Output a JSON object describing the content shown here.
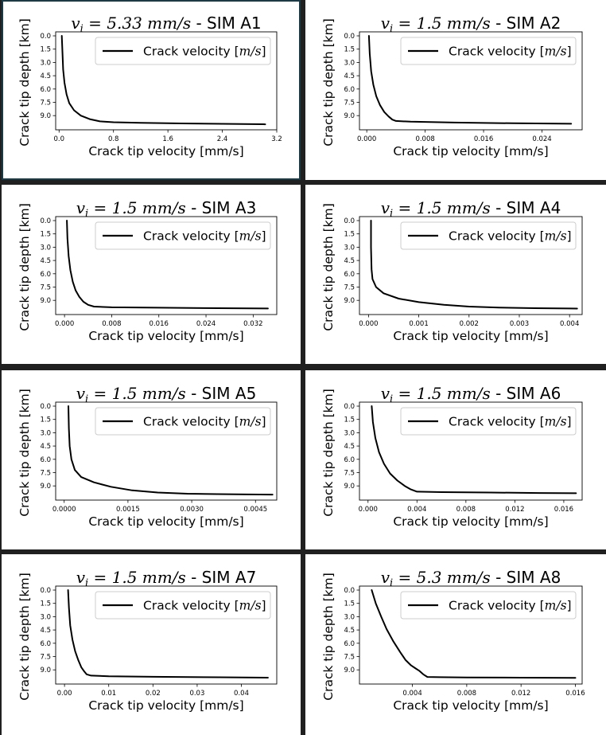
{
  "colors": {
    "background": "#202020",
    "panel": "#ffffff",
    "line": "#000000",
    "frame_A1": "#1c3a46"
  },
  "common": {
    "ylabel": "Crack tip depth [km]",
    "xlabel": "Crack tip velocity [mm/s]",
    "legend": "Crack velocity [m/s]"
  },
  "chart_data": [
    {
      "type": "line",
      "panel": "A1",
      "title": "v_i = 5.33 mm/s - SIM A1",
      "title_vi": "5.33",
      "title_sim": "SIM A1",
      "xlabel": "Crack tip velocity [mm/s]",
      "ylabel": "Crack tip depth [km]",
      "legend": "Crack velocity [m/s]",
      "legend_position": "top-right",
      "xlim": [
        -0.05,
        3.2
      ],
      "ylim": [
        10.6,
        -0.45
      ],
      "xticks": [
        0.0,
        0.8,
        1.6,
        2.4,
        3.2
      ],
      "xtick_labels": [
        "0.0",
        "0.8",
        "1.6",
        "2.4",
        "3.2"
      ],
      "yticks": [
        0.0,
        1.5,
        3.0,
        4.5,
        6.0,
        7.5,
        9.0
      ],
      "ytick_labels": [
        "0.0",
        "1.5",
        "3.0",
        "4.5",
        "6.0",
        "7.5",
        "9.0"
      ],
      "series": [
        {
          "x": [
            0.04,
            0.05,
            0.06,
            0.08,
            0.11,
            0.15,
            0.22,
            0.32,
            0.45,
            0.6,
            0.8,
            1.2,
            1.8,
            2.4,
            3.0,
            3.03
          ],
          "y": [
            0.0,
            2.0,
            3.8,
            5.3,
            6.6,
            7.6,
            8.4,
            9.0,
            9.4,
            9.65,
            9.75,
            9.82,
            9.88,
            9.93,
            9.97,
            9.98
          ]
        }
      ]
    },
    {
      "type": "line",
      "panel": "A2",
      "title": "v_i = 1.5 mm/s - SIM A2",
      "title_vi": "1.5",
      "title_sim": "SIM A2",
      "xlabel": "Crack tip velocity [mm/s]",
      "ylabel": "Crack tip depth [km]",
      "legend": "Crack velocity [m/s]",
      "legend_position": "top-right",
      "xlim": [
        -0.001,
        0.0295
      ],
      "ylim": [
        10.6,
        -0.45
      ],
      "xticks": [
        0.0,
        0.008,
        0.016,
        0.024
      ],
      "xtick_labels": [
        "0.000",
        "0.008",
        "0.016",
        "0.024"
      ],
      "yticks": [
        0.0,
        1.5,
        3.0,
        4.5,
        6.0,
        7.5,
        9.0
      ],
      "ytick_labels": [
        "0.0",
        "1.5",
        "3.0",
        "4.5",
        "6.0",
        "7.5",
        "9.0"
      ],
      "series": [
        {
          "x": [
            0.0003,
            0.0004,
            0.0006,
            0.0009,
            0.0013,
            0.0018,
            0.0024,
            0.003,
            0.0035,
            0.004,
            0.006,
            0.012,
            0.02,
            0.028
          ],
          "y": [
            0.0,
            2.0,
            4.0,
            5.5,
            6.8,
            7.8,
            8.6,
            9.1,
            9.45,
            9.6,
            9.68,
            9.78,
            9.86,
            9.92
          ]
        }
      ]
    },
    {
      "type": "line",
      "panel": "A3",
      "title": "v_i = 1.5 mm/s - SIM A3",
      "title_vi": "1.5",
      "title_sim": "SIM A3",
      "xlabel": "Crack tip velocity [mm/s]",
      "ylabel": "Crack tip depth [km]",
      "legend": "Crack velocity [m/s]",
      "legend_position": "top-right",
      "xlim": [
        -0.0015,
        0.036
      ],
      "ylim": [
        10.6,
        -0.45
      ],
      "xticks": [
        0.0,
        0.008,
        0.016,
        0.024,
        0.032
      ],
      "xtick_labels": [
        "0.000",
        "0.008",
        "0.016",
        "0.024",
        "0.032"
      ],
      "yticks": [
        0.0,
        1.5,
        3.0,
        4.5,
        6.0,
        7.5,
        9.0
      ],
      "ytick_labels": [
        "0.0",
        "1.5",
        "3.0",
        "4.5",
        "6.0",
        "7.5",
        "9.0"
      ],
      "series": [
        {
          "x": [
            0.0004,
            0.0005,
            0.0007,
            0.001,
            0.0014,
            0.0019,
            0.0025,
            0.0032,
            0.004,
            0.005,
            0.008,
            0.016,
            0.026,
            0.0345
          ],
          "y": [
            0.0,
            2.0,
            4.0,
            5.6,
            6.9,
            7.9,
            8.6,
            9.15,
            9.5,
            9.7,
            9.78,
            9.83,
            9.88,
            9.92
          ]
        }
      ]
    },
    {
      "type": "line",
      "panel": "A4",
      "title": "v_i = 1.5 mm/s - SIM A4",
      "title_vi": "1.5",
      "title_sim": "SIM A4",
      "xlabel": "Crack tip velocity [mm/s]",
      "ylabel": "Crack tip depth [km]",
      "legend": "Crack velocity [m/s]",
      "legend_position": "top-right",
      "xlim": [
        -0.00018,
        0.00425
      ],
      "ylim": [
        10.6,
        -0.45
      ],
      "xticks": [
        0.0,
        0.001,
        0.002,
        0.003,
        0.004
      ],
      "xtick_labels": [
        "0.000",
        "0.001",
        "0.002",
        "0.003",
        "0.004"
      ],
      "yticks": [
        0.0,
        1.5,
        3.0,
        4.5,
        6.0,
        7.5,
        9.0
      ],
      "ytick_labels": [
        "0.0",
        "1.5",
        "3.0",
        "4.5",
        "6.0",
        "7.5",
        "9.0"
      ],
      "series": [
        {
          "x": [
            5e-05,
            5e-05,
            6e-05,
            8e-05,
            0.00015,
            0.0003,
            0.0006,
            0.001,
            0.0015,
            0.002,
            0.0026,
            0.0033,
            0.004,
            0.00415
          ],
          "y": [
            0.0,
            3.0,
            5.5,
            6.6,
            7.5,
            8.2,
            8.8,
            9.2,
            9.5,
            9.7,
            9.82,
            9.88,
            9.92,
            9.93
          ]
        }
      ]
    },
    {
      "type": "line",
      "panel": "A5",
      "title": "v_i = 1.5 mm/s - SIM A5",
      "title_vi": "1.5",
      "title_sim": "SIM A5",
      "xlabel": "Crack tip velocity [mm/s]",
      "ylabel": "Crack tip depth [km]",
      "legend": "Crack velocity [m/s]",
      "legend_position": "top-right",
      "xlim": [
        -0.0002,
        0.005
      ],
      "ylim": [
        10.6,
        -0.45
      ],
      "xticks": [
        0.0,
        0.0015,
        0.003,
        0.0045
      ],
      "xtick_labels": [
        "0.0000",
        "0.0015",
        "0.0030",
        "0.0045"
      ],
      "yticks": [
        0.0,
        1.5,
        3.0,
        4.5,
        6.0,
        7.5,
        9.0
      ],
      "ytick_labels": [
        "0.0",
        "1.5",
        "3.0",
        "4.5",
        "6.0",
        "7.5",
        "9.0"
      ],
      "series": [
        {
          "x": [
            0.0001,
            0.00011,
            0.00013,
            0.00017,
            0.00025,
            0.0004,
            0.0007,
            0.0011,
            0.0016,
            0.0022,
            0.0029,
            0.0036,
            0.0043,
            0.0049
          ],
          "y": [
            0.0,
            2.5,
            4.5,
            6.0,
            7.2,
            8.0,
            8.6,
            9.1,
            9.5,
            9.75,
            9.88,
            9.93,
            9.96,
            9.98
          ]
        }
      ]
    },
    {
      "type": "line",
      "panel": "A6",
      "title": "v_i = 1.5 mm/s - SIM A6",
      "title_vi": "1.5",
      "title_sim": "SIM A6",
      "xlabel": "Crack tip velocity [mm/s]",
      "ylabel": "Crack tip depth [km]",
      "legend": "Crack velocity [m/s]",
      "legend_position": "top-right",
      "xlim": [
        -0.0007,
        0.0175
      ],
      "ylim": [
        10.6,
        -0.45
      ],
      "xticks": [
        0.0,
        0.004,
        0.008,
        0.012,
        0.016
      ],
      "xtick_labels": [
        "0.000",
        "0.004",
        "0.008",
        "0.012",
        "0.016"
      ],
      "yticks": [
        0.0,
        1.5,
        3.0,
        4.5,
        6.0,
        7.5,
        9.0
      ],
      "ytick_labels": [
        "0.0",
        "1.5",
        "3.0",
        "4.5",
        "6.0",
        "7.5",
        "9.0"
      ],
      "series": [
        {
          "x": [
            0.0003,
            0.0004,
            0.0006,
            0.0009,
            0.0013,
            0.0018,
            0.0024,
            0.003,
            0.0035,
            0.004,
            0.006,
            0.01,
            0.014,
            0.017
          ],
          "y": [
            0.0,
            1.8,
            3.6,
            5.2,
            6.5,
            7.6,
            8.4,
            9.0,
            9.4,
            9.65,
            9.7,
            9.75,
            9.8,
            9.83
          ]
        }
      ]
    },
    {
      "type": "line",
      "panel": "A7",
      "title": "v_i = 1.5 mm/s - SIM A7",
      "title_vi": "1.5",
      "title_sim": "SIM A7",
      "xlabel": "Crack tip velocity [mm/s]",
      "ylabel": "Crack tip depth [km]",
      "legend": "Crack velocity [m/s]",
      "legend_position": "top-right",
      "xlim": [
        -0.002,
        0.048
      ],
      "ylim": [
        10.6,
        -0.45
      ],
      "xticks": [
        0.0,
        0.01,
        0.02,
        0.03,
        0.04
      ],
      "xtick_labels": [
        "0.00",
        "0.01",
        "0.02",
        "0.03",
        "0.04"
      ],
      "yticks": [
        0.0,
        1.5,
        3.0,
        4.5,
        6.0,
        7.5,
        9.0
      ],
      "ytick_labels": [
        "0.0",
        "1.5",
        "3.0",
        "4.5",
        "6.0",
        "7.5",
        "9.0"
      ],
      "series": [
        {
          "x": [
            0.0008,
            0.001,
            0.0013,
            0.0018,
            0.0024,
            0.0031,
            0.0038,
            0.0045,
            0.005,
            0.006,
            0.01,
            0.02,
            0.035,
            0.046
          ],
          "y": [
            0.0,
            2.0,
            4.0,
            5.6,
            6.9,
            7.9,
            8.7,
            9.2,
            9.5,
            9.65,
            9.72,
            9.78,
            9.84,
            9.88
          ]
        }
      ]
    },
    {
      "type": "line",
      "panel": "A8",
      "title": "v_i = 5.3 mm/s - SIM A8",
      "title_vi": "5.3",
      "title_sim": "SIM A8",
      "xlabel": "Crack tip velocity [mm/s]",
      "ylabel": "Crack tip depth [km]",
      "legend": "Crack velocity [m/s]",
      "legend_position": "top-right",
      "xlim": [
        0.0001,
        0.0165
      ],
      "ylim": [
        10.6,
        -0.45
      ],
      "xticks": [
        0.004,
        0.008,
        0.012,
        0.016
      ],
      "xtick_labels": [
        "0.004",
        "0.008",
        "0.012",
        "0.016"
      ],
      "yticks": [
        0.0,
        1.5,
        3.0,
        4.5,
        6.0,
        7.5,
        9.0
      ],
      "ytick_labels": [
        "0.0",
        "1.5",
        "3.0",
        "4.5",
        "6.0",
        "7.5",
        "9.0"
      ],
      "series": [
        {
          "x": [
            0.001,
            0.0013,
            0.0017,
            0.0021,
            0.0026,
            0.0031,
            0.0035,
            0.0039,
            0.0042,
            0.0045,
            0.0048,
            0.0051,
            0.006,
            0.008,
            0.012,
            0.016
          ],
          "y": [
            0.0,
            1.5,
            3.0,
            4.4,
            5.8,
            7.0,
            7.9,
            8.5,
            8.8,
            9.1,
            9.5,
            9.8,
            9.83,
            9.85,
            9.88,
            9.9
          ]
        }
      ]
    }
  ]
}
